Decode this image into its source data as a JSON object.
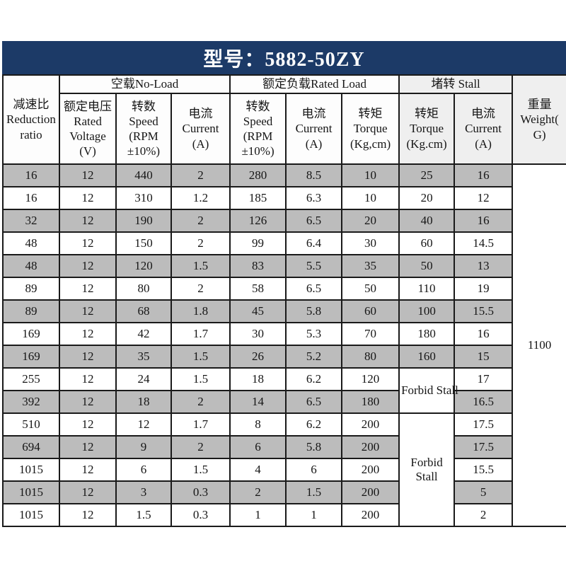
{
  "page": {
    "title": "型号：5882-50ZY",
    "colors": {
      "title_bg": "#1c3a67",
      "title_text": "#ffffff",
      "row_gray": "#bcbcbc",
      "header_shade": "#efefef",
      "border": "#1a1a1a"
    }
  },
  "table": {
    "header": {
      "reduction_ratio": "减速比 Reduction ratio",
      "no_load_group": "空载No-Load",
      "rated_load_group": "额定负载Rated Load",
      "stall_group": "堵转 Stall",
      "weight": "重量 Weight( G)",
      "rated_voltage": "额定电压Rated Voltage (V)",
      "no_load_speed": "转数 Speed (RPM ±10%)",
      "no_load_current": "电流 Current (A)",
      "rated_speed": "转数 Speed (RPM ±10%)",
      "rated_current": "电流 Current (A)",
      "rated_torque": "转矩 Torque (Kg,cm)",
      "stall_torque": "转矩 Torque (Kg.cm)",
      "stall_current": "电流 Current (A)"
    },
    "weight_value": "1100",
    "forbid_stall_1": "Forbid Stall",
    "forbid_stall_2": "Forbid Stall",
    "rows": [
      [
        "16",
        "12",
        "440",
        "2",
        "280",
        "8.5",
        "10",
        "25",
        "16"
      ],
      [
        "16",
        "12",
        "310",
        "1.2",
        "185",
        "6.3",
        "10",
        "20",
        "12"
      ],
      [
        "32",
        "12",
        "190",
        "2",
        "126",
        "6.5",
        "20",
        "40",
        "16"
      ],
      [
        "48",
        "12",
        "150",
        "2",
        "99",
        "6.4",
        "30",
        "60",
        "14.5"
      ],
      [
        "48",
        "12",
        "120",
        "1.5",
        "83",
        "5.5",
        "35",
        "50",
        "13"
      ],
      [
        "89",
        "12",
        "80",
        "2",
        "58",
        "6.5",
        "50",
        "110",
        "19"
      ],
      [
        "89",
        "12",
        "68",
        "1.8",
        "45",
        "5.8",
        "60",
        "100",
        "15.5"
      ],
      [
        "169",
        "12",
        "42",
        "1.7",
        "30",
        "5.3",
        "70",
        "180",
        "16"
      ],
      [
        "169",
        "12",
        "35",
        "1.5",
        "26",
        "5.2",
        "80",
        "160",
        "15"
      ],
      [
        "255",
        "12",
        "24",
        "1.5",
        "18",
        "6.2",
        "120",
        "17"
      ],
      [
        "392",
        "12",
        "18",
        "2",
        "14",
        "6.5",
        "180",
        "16.5"
      ],
      [
        "510",
        "12",
        "12",
        "1.7",
        "8",
        "6.2",
        "200",
        "17.5"
      ],
      [
        "694",
        "12",
        "9",
        "2",
        "6",
        "5.8",
        "200",
        "17.5"
      ],
      [
        "1015",
        "12",
        "6",
        "1.5",
        "4",
        "6",
        "200",
        "15.5"
      ],
      [
        "1015",
        "12",
        "3",
        "0.3",
        "2",
        "1.5",
        "200",
        "5"
      ],
      [
        "1015",
        "12",
        "1.5",
        "0.3",
        "1",
        "1",
        "200",
        "2"
      ]
    ]
  }
}
